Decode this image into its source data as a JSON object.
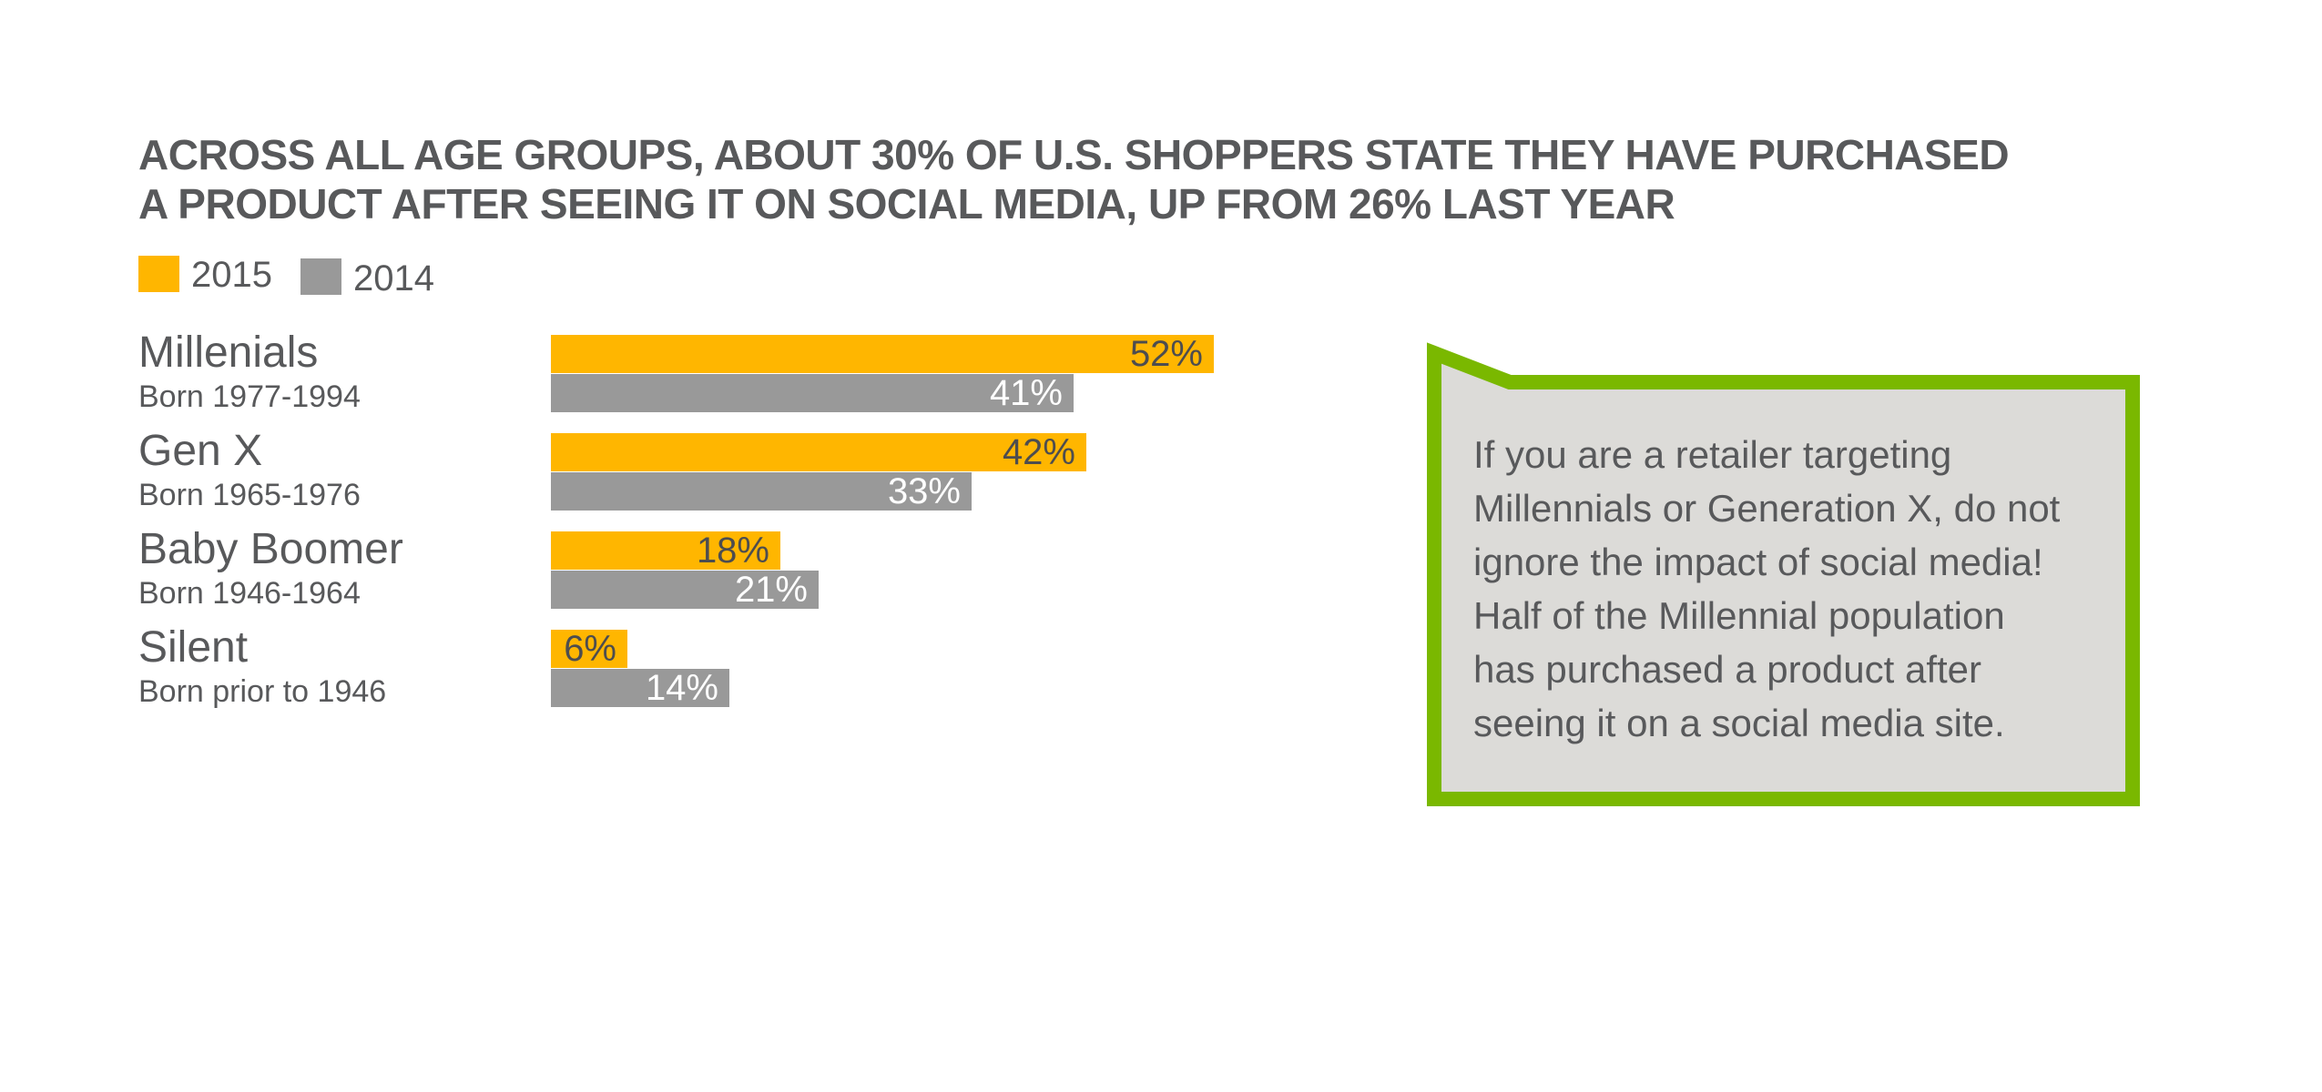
{
  "title_lines": [
    "ACROSS ALL AGE GROUPS, ABOUT 30% OF U.S. SHOPPERS STATE THEY HAVE PURCHASED",
    "A PRODUCT AFTER SEEING IT ON SOCIAL MEDIA, UP FROM 26% LAST YEAR"
  ],
  "colors": {
    "series_2015": "#ffb600",
    "series_2014": "#999999",
    "callout_border": "#7ab800",
    "callout_fill": "#dcdbd8",
    "text": "#58595b"
  },
  "chart_data": {
    "type": "bar",
    "orientation": "horizontal",
    "title": "ACROSS ALL AGE GROUPS, ABOUT 30% OF U.S. SHOPPERS STATE THEY HAVE PURCHASED A PRODUCT AFTER SEEING IT ON SOCIAL MEDIA, UP FROM 26% LAST YEAR",
    "categories": [
      "Millenials",
      "Gen X",
      "Baby Boomer",
      "Silent"
    ],
    "category_subtitles": [
      "Born 1977-1994",
      "Born 1965-1976",
      "Born 1946-1964",
      "Born prior to 1946"
    ],
    "series": [
      {
        "name": "2015",
        "values": [
          52,
          42,
          18,
          6
        ],
        "labels": [
          "52%",
          "42%",
          "18%",
          "6%"
        ]
      },
      {
        "name": "2014",
        "values": [
          41,
          33,
          21,
          14
        ],
        "labels": [
          "41%",
          "33%",
          "21%",
          "14%"
        ]
      }
    ],
    "xlim": [
      0,
      100
    ],
    "unit": "%",
    "legend_position": "top-left",
    "grid": false
  },
  "callout": {
    "lines": [
      "If you are a retailer targeting",
      "Millennials or Generation X, do not",
      "ignore the impact of social media!",
      "Half of the Millennial population",
      "has purchased a product after",
      "seeing it on a social media site."
    ]
  }
}
